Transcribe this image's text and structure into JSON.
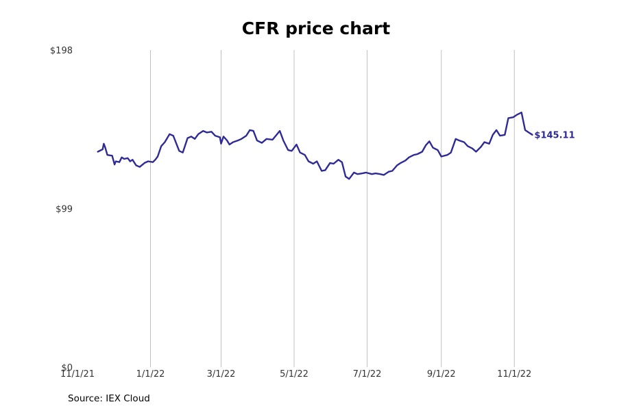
{
  "title": "CFR price chart",
  "source": "Source: IEX Cloud",
  "colors": {
    "line": "#2e2a96",
    "grid": "#c0c0c0",
    "text": "#333333"
  },
  "chart_data": {
    "type": "line",
    "title": "CFR price chart",
    "xlabel": "",
    "ylabel": "",
    "x_range": [
      "2021-11-01",
      "2022-12-31"
    ],
    "ylim": [
      0,
      198
    ],
    "y_ticks": [
      0,
      99,
      198
    ],
    "y_tick_labels": [
      "$0",
      "$99",
      "$198"
    ],
    "x_ticks": [
      "2021-11-01",
      "2022-01-01",
      "2022-03-01",
      "2022-05-01",
      "2022-07-01",
      "2022-09-01",
      "2022-11-01"
    ],
    "x_tick_labels": [
      "11/1/21",
      "1/1/22",
      "3/1/22",
      "5/1/22",
      "7/1/22",
      "9/1/22",
      "11/1/22"
    ],
    "grid": "vertical",
    "end_label": "$145.11",
    "series": [
      {
        "points": [
          [
            "2021-11-18",
            134.5
          ],
          [
            "2021-11-22",
            136.0
          ],
          [
            "2021-11-23",
            139.5
          ],
          [
            "2021-11-24",
            137.5
          ],
          [
            "2021-11-26",
            132.5
          ],
          [
            "2021-11-30",
            132.0
          ],
          [
            "2021-12-02",
            126.5
          ],
          [
            "2021-12-03",
            128.5
          ],
          [
            "2021-12-06",
            128.0
          ],
          [
            "2021-12-08",
            131.0
          ],
          [
            "2021-12-10",
            130.0
          ],
          [
            "2021-12-13",
            130.5
          ],
          [
            "2021-12-15",
            128.5
          ],
          [
            "2021-12-17",
            129.5
          ],
          [
            "2021-12-20",
            126.0
          ],
          [
            "2021-12-23",
            125.0
          ],
          [
            "2021-12-27",
            127.5
          ],
          [
            "2021-12-30",
            128.5
          ],
          [
            "2022-01-03",
            128.0
          ],
          [
            "2022-01-05",
            129.5
          ],
          [
            "2022-01-07",
            131.5
          ],
          [
            "2022-01-10",
            138.0
          ],
          [
            "2022-01-13",
            140.5
          ],
          [
            "2022-01-17",
            145.5
          ],
          [
            "2022-01-20",
            144.5
          ],
          [
            "2022-01-25",
            135.0
          ],
          [
            "2022-01-28",
            134.0
          ],
          [
            "2022-02-01",
            143.0
          ],
          [
            "2022-02-04",
            144.0
          ],
          [
            "2022-02-07",
            142.5
          ],
          [
            "2022-02-10",
            145.5
          ],
          [
            "2022-02-14",
            147.5
          ],
          [
            "2022-02-17",
            146.5
          ],
          [
            "2022-02-21",
            147.0
          ],
          [
            "2022-02-24",
            144.5
          ],
          [
            "2022-02-28",
            143.5
          ],
          [
            "2022-03-01",
            139.5
          ],
          [
            "2022-03-03",
            144.0
          ],
          [
            "2022-03-06",
            141.5
          ],
          [
            "2022-03-08",
            139.0
          ],
          [
            "2022-03-11",
            140.5
          ],
          [
            "2022-03-15",
            141.5
          ],
          [
            "2022-03-18",
            142.5
          ],
          [
            "2022-03-22",
            144.5
          ],
          [
            "2022-03-25",
            148.0
          ],
          [
            "2022-03-28",
            147.5
          ],
          [
            "2022-03-31",
            141.5
          ],
          [
            "2022-04-04",
            140.0
          ],
          [
            "2022-04-08",
            142.5
          ],
          [
            "2022-04-13",
            142.0
          ],
          [
            "2022-04-19",
            147.5
          ],
          [
            "2022-04-22",
            141.5
          ],
          [
            "2022-04-26",
            135.5
          ],
          [
            "2022-04-29",
            135.0
          ],
          [
            "2022-05-03",
            139.0
          ],
          [
            "2022-05-06",
            134.0
          ],
          [
            "2022-05-10",
            132.5
          ],
          [
            "2022-05-13",
            128.5
          ],
          [
            "2022-05-17",
            127.0
          ],
          [
            "2022-05-20",
            128.5
          ],
          [
            "2022-05-24",
            122.5
          ],
          [
            "2022-05-27",
            123.0
          ],
          [
            "2022-05-31",
            127.5
          ],
          [
            "2022-06-03",
            127.0
          ],
          [
            "2022-06-07",
            129.5
          ],
          [
            "2022-06-10",
            128.0
          ],
          [
            "2022-06-13",
            119.0
          ],
          [
            "2022-06-16",
            117.5
          ],
          [
            "2022-06-20",
            121.5
          ],
          [
            "2022-06-23",
            120.5
          ],
          [
            "2022-06-27",
            121.0
          ],
          [
            "2022-06-30",
            121.5
          ],
          [
            "2022-07-05",
            120.5
          ],
          [
            "2022-07-08",
            121.0
          ],
          [
            "2022-07-12",
            120.5
          ],
          [
            "2022-07-15",
            120.0
          ],
          [
            "2022-07-19",
            122.0
          ],
          [
            "2022-07-22",
            122.5
          ],
          [
            "2022-07-26",
            126.0
          ],
          [
            "2022-07-29",
            127.5
          ],
          [
            "2022-08-02",
            129.0
          ],
          [
            "2022-08-05",
            131.0
          ],
          [
            "2022-08-09",
            132.5
          ],
          [
            "2022-08-12",
            133.0
          ],
          [
            "2022-08-16",
            134.5
          ],
          [
            "2022-08-19",
            138.5
          ],
          [
            "2022-08-22",
            141.0
          ],
          [
            "2022-08-25",
            137.0
          ],
          [
            "2022-08-29",
            135.5
          ],
          [
            "2022-09-01",
            131.5
          ],
          [
            "2022-09-06",
            132.5
          ],
          [
            "2022-09-09",
            134.0
          ],
          [
            "2022-09-13",
            142.5
          ],
          [
            "2022-09-16",
            141.5
          ],
          [
            "2022-09-20",
            140.5
          ],
          [
            "2022-09-23",
            138.0
          ],
          [
            "2022-09-27",
            136.5
          ],
          [
            "2022-09-30",
            134.5
          ],
          [
            "2022-10-04",
            137.5
          ],
          [
            "2022-10-07",
            140.5
          ],
          [
            "2022-10-11",
            139.5
          ],
          [
            "2022-10-14",
            145.0
          ],
          [
            "2022-10-17",
            148.0
          ],
          [
            "2022-10-20",
            144.5
          ],
          [
            "2022-10-24",
            145.0
          ],
          [
            "2022-10-27",
            155.5
          ],
          [
            "2022-10-31",
            156.0
          ],
          [
            "2022-11-03",
            157.5
          ],
          [
            "2022-11-07",
            159.0
          ],
          [
            "2022-11-10",
            148.0
          ],
          [
            "2022-11-13",
            146.5
          ],
          [
            "2022-11-16",
            145.11
          ]
        ]
      }
    ]
  }
}
